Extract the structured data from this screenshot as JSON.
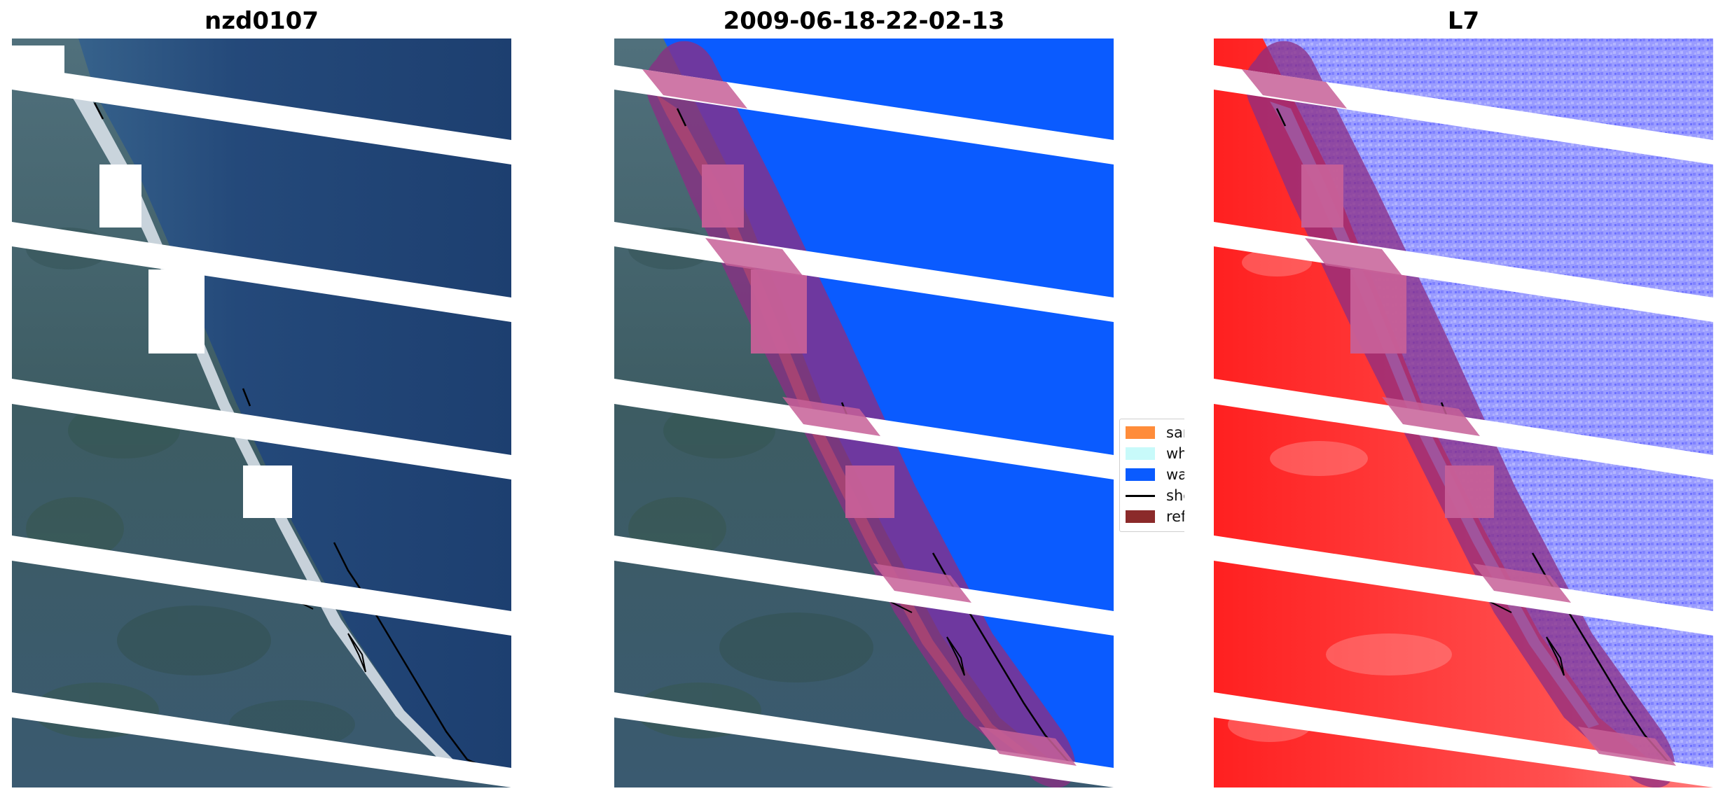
{
  "panels": [
    {
      "title": "nzd0107"
    },
    {
      "title": "2009-06-18-22-02-13"
    },
    {
      "title": "L7"
    }
  ],
  "legend": {
    "items": [
      {
        "label": "sand",
        "kind": "patch",
        "color": "#ff8c3a"
      },
      {
        "label": "whitew",
        "kind": "patch",
        "color": "#c8fafa"
      },
      {
        "label": "water",
        "kind": "patch",
        "color": "#0a5bff"
      },
      {
        "label": "shoreli",
        "kind": "line",
        "color": "#000000"
      },
      {
        "label": "referen",
        "kind": "patch",
        "color": "#8b2a2a"
      }
    ]
  },
  "colors": {
    "land_rgb": "#3f5e68",
    "ocean_rgb": "#1f4272",
    "beach": "#dfe6ee",
    "water_class": "#0a5bff",
    "sand_class": "#ff8c3a",
    "buffer_overlay": "#8b2e84",
    "land_index": "#ff2a2a",
    "water_index": "#8a8cff",
    "gap_stripes": "#ffffff"
  }
}
